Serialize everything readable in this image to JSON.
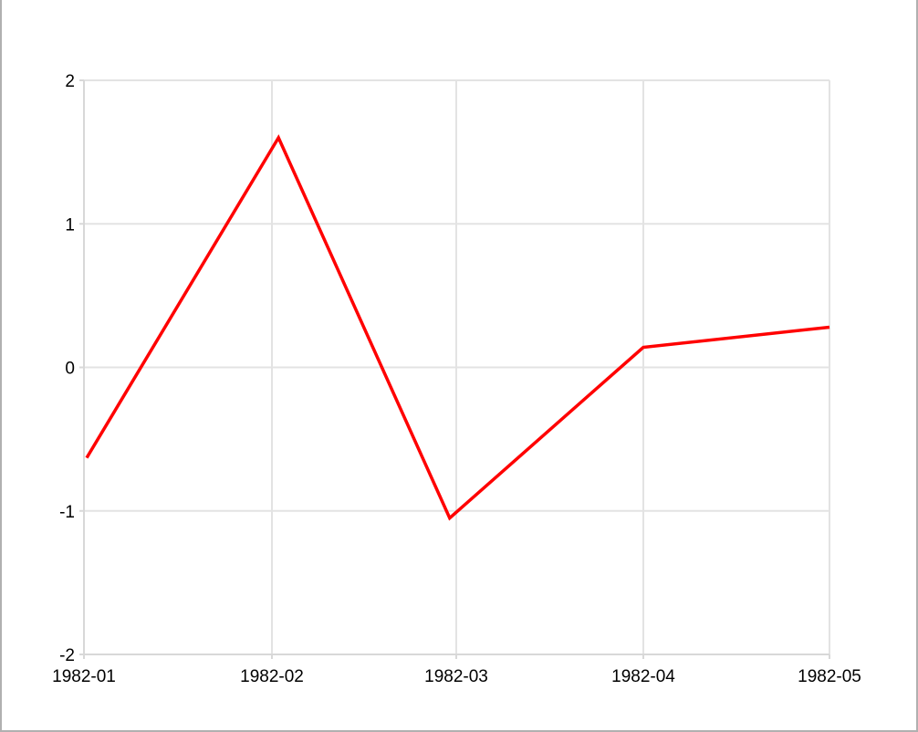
{
  "chart_data": {
    "type": "line",
    "title": "",
    "xlabel": "",
    "ylabel": "",
    "categories": [
      "1982-01",
      "1982-02",
      "1982-03",
      "1982-04",
      "1982-05"
    ],
    "x": [
      "1982-01-01",
      "1982-02-02",
      "1982-02-28",
      "1982-04-01",
      "1982-05-01"
    ],
    "series": [
      {
        "color": "#ff0000",
        "values": [
          -0.63,
          1.6,
          -1.05,
          0.14,
          0.28
        ]
      }
    ],
    "ylim": [
      -2,
      2
    ],
    "yticks": [
      -2,
      -1,
      0,
      1,
      2
    ],
    "grid": true,
    "legend": "none"
  }
}
